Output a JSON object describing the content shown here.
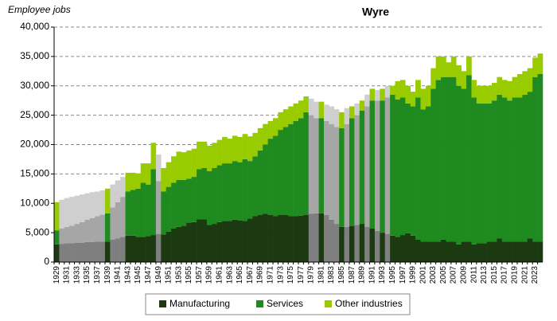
{
  "chart_data": {
    "type": "stacked_bar",
    "title": "Wyre",
    "y_label": "Employee jobs",
    "categories": [
      "1929",
      null,
      "1931",
      null,
      "1933",
      null,
      "1935",
      null,
      "1937",
      null,
      "1939",
      null,
      "1941",
      null,
      "1943",
      null,
      "1945",
      null,
      "1947",
      null,
      "1949",
      null,
      "1951",
      null,
      "1953",
      null,
      "1955",
      null,
      "1957",
      null,
      "1959",
      null,
      "1961",
      null,
      "1963",
      null,
      "1965",
      null,
      "1967",
      null,
      "1969",
      null,
      "1971",
      null,
      "1973",
      null,
      "1975",
      null,
      "1977",
      null,
      "1979",
      null,
      "1981",
      null,
      "1983",
      null,
      "1985",
      null,
      "1987",
      null,
      "1989",
      null,
      "1991",
      null,
      "1993",
      null,
      "1995",
      null,
      "1997",
      null,
      "1999",
      null,
      "2001",
      null,
      "2003",
      null,
      "2005",
      null,
      "2007",
      null,
      "2009",
      null,
      "2011",
      null,
      "2013",
      null,
      "2015",
      null,
      "2017",
      null,
      "2019",
      null,
      "2021",
      null,
      "2023",
      null
    ],
    "estimated": [
      false,
      true,
      true,
      true,
      true,
      true,
      true,
      true,
      true,
      true,
      false,
      true,
      true,
      true,
      false,
      false,
      false,
      false,
      false,
      false,
      true,
      false,
      false,
      false,
      false,
      false,
      false,
      false,
      false,
      false,
      false,
      false,
      false,
      false,
      false,
      false,
      false,
      false,
      false,
      false,
      false,
      false,
      false,
      false,
      false,
      false,
      false,
      false,
      false,
      false,
      true,
      true,
      false,
      true,
      true,
      true,
      false,
      true,
      false,
      true,
      false,
      true,
      false,
      true,
      false,
      true,
      false,
      false,
      false,
      false,
      false,
      false,
      false,
      false,
      false,
      false,
      false,
      false,
      false,
      false,
      false,
      false,
      false,
      false,
      false,
      false,
      false,
      false,
      false,
      false,
      false,
      false,
      false,
      false,
      false,
      false
    ],
    "series": [
      {
        "name": "Manufacturing",
        "color": "#1c3a12",
        "estimate_color": "#7f7f7f",
        "values": [
          3000,
          3100,
          3200,
          3200,
          3300,
          3300,
          3400,
          3400,
          3500,
          3500,
          3500,
          3800,
          4000,
          4300,
          4500,
          4500,
          4300,
          4300,
          4400,
          4600,
          4800,
          4700,
          5200,
          5700,
          6000,
          6200,
          6700,
          6800,
          7300,
          7300,
          6300,
          6500,
          6800,
          7000,
          7000,
          7200,
          7100,
          7000,
          7400,
          7800,
          8000,
          8200,
          8000,
          7800,
          8000,
          8000,
          7800,
          7800,
          7900,
          8000,
          8200,
          8300,
          8300,
          8000,
          7200,
          6500,
          6000,
          6000,
          6100,
          6300,
          6500,
          6000,
          5700,
          5300,
          5000,
          4800,
          4500,
          4300,
          4600,
          4900,
          4500,
          3800,
          3500,
          3500,
          3500,
          3500,
          3800,
          3500,
          3500,
          3000,
          3500,
          3500,
          3000,
          3200,
          3200,
          3500,
          3500,
          4000,
          3500,
          3500,
          3500,
          3500,
          3500,
          4000,
          3500,
          3500
        ]
      },
      {
        "name": "Services",
        "color": "#1f8a1f",
        "estimate_color": "#a6a6a6",
        "values": [
          2400,
          2600,
          2800,
          3000,
          3200,
          3500,
          3800,
          4100,
          4300,
          4600,
          4800,
          5500,
          6200,
          6800,
          7500,
          7800,
          8200,
          9200,
          8800,
          11200,
          9000,
          7300,
          7600,
          7800,
          8000,
          7800,
          7500,
          7700,
          8500,
          8700,
          9200,
          9500,
          9700,
          9800,
          9800,
          10000,
          9900,
          10500,
          9800,
          10200,
          11000,
          11800,
          13000,
          13700,
          14500,
          15000,
          15700,
          16200,
          16600,
          17500,
          16800,
          16200,
          16200,
          16000,
          16300,
          16500,
          16800,
          17500,
          18400,
          18700,
          19300,
          20500,
          21800,
          22200,
          22500,
          23200,
          24000,
          23400,
          23400,
          22100,
          22000,
          24200,
          22500,
          23000,
          26000,
          27500,
          27700,
          28000,
          28000,
          27000,
          26000,
          28300,
          25000,
          23800,
          23800,
          23500,
          24000,
          24500,
          24500,
          24000,
          24500,
          24500,
          25000,
          25000,
          28000,
          28500
        ]
      },
      {
        "name": "Other industries",
        "color": "#99cc00",
        "estimate_color": "#cfcfcf",
        "values": [
          4800,
          4900,
          4900,
          4900,
          4800,
          4700,
          4500,
          4400,
          4200,
          4100,
          4200,
          3900,
          3700,
          3400,
          3200,
          2900,
          2600,
          3300,
          3600,
          4500,
          4500,
          4000,
          4200,
          4500,
          4800,
          4700,
          4800,
          4800,
          4700,
          4500,
          4300,
          4300,
          4300,
          4500,
          4200,
          4300,
          4300,
          4300,
          4200,
          4000,
          3800,
          3500,
          3000,
          3000,
          3000,
          3000,
          3000,
          3000,
          3000,
          2700,
          2800,
          2800,
          2800,
          2800,
          3000,
          3000,
          2700,
          2700,
          2000,
          2000,
          1700,
          2000,
          2000,
          1800,
          2000,
          2000,
          1500,
          3100,
          3000,
          3000,
          2500,
          3000,
          3500,
          3500,
          3500,
          4000,
          3500,
          2500,
          3500,
          3500,
          3000,
          3200,
          3000,
          3000,
          3000,
          3000,
          3000,
          3000,
          3000,
          3300,
          3500,
          4000,
          4000,
          4000,
          3300,
          3500
        ]
      }
    ],
    "ylim": [
      0,
      40000
    ],
    "yticks": [
      0,
      {
        "value": 5000,
        "label": "5,000"
      },
      {
        "value": 10000,
        "label": "10,000"
      },
      {
        "value": 15000,
        "label": "15,000"
      },
      {
        "value": 20000,
        "label": "20,000"
      },
      {
        "value": 25000,
        "label": "25,000"
      },
      {
        "value": 30000,
        "label": "30,000"
      },
      {
        "value": 35000,
        "label": "35,000"
      },
      {
        "value": 40000,
        "label": "40,000"
      }
    ],
    "grid": true,
    "legend": "bottom"
  }
}
